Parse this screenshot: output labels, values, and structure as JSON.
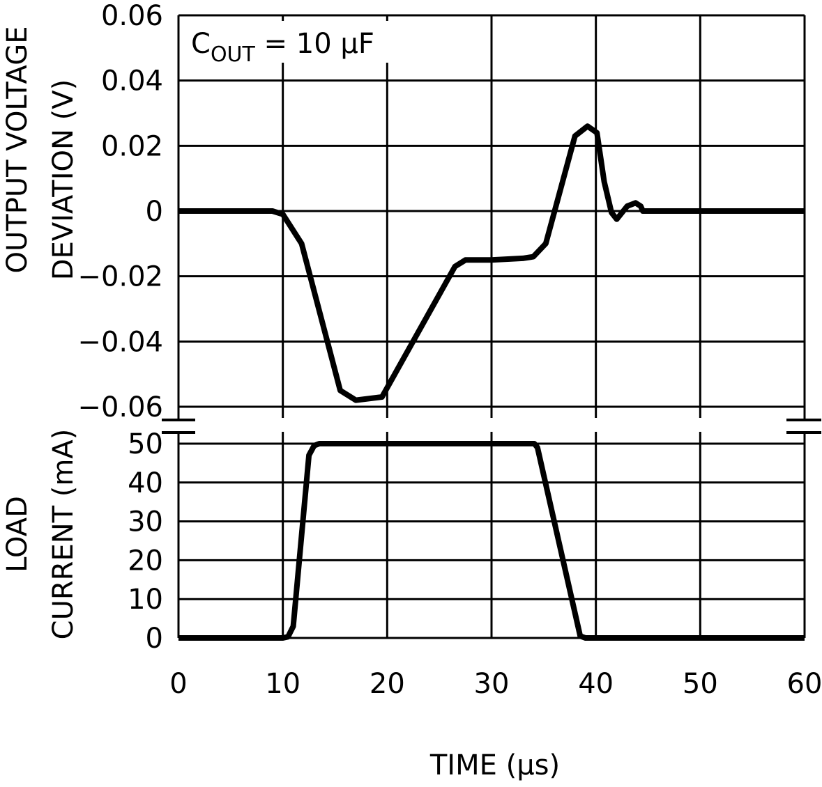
{
  "chart_data": {
    "type": "line",
    "shared_x": {
      "label": "TIME (µs)",
      "range": [
        0,
        60
      ],
      "ticks": [
        0,
        10,
        20,
        30,
        40,
        50,
        60
      ],
      "tick_labels": [
        "0",
        "10",
        "20",
        "30",
        "40",
        "50",
        "60"
      ]
    },
    "panels": [
      {
        "id": "voltage",
        "ylabel_line1": "OUTPUT VOLTAGE",
        "ylabel_line2": "DEVIATION (V)",
        "ylim": [
          -0.06,
          0.06
        ],
        "yticks": [
          0.06,
          0.04,
          0.02,
          0,
          -0.02,
          -0.04,
          -0.06
        ],
        "ytick_labels": [
          "0.06",
          "0.04",
          "0.02",
          "0",
          "−0.02",
          "−0.04",
          "−0.06"
        ],
        "grid": true,
        "annotation": {
          "main": "C",
          "sub": "OUT",
          "rest": " = 10 µF"
        },
        "series": [
          {
            "x": [
              0,
              9,
              10,
              11.8,
              15.5,
              17,
              19.5,
              26.5,
              27.5,
              30,
              33,
              34,
              35.2,
              38,
              39.2,
              40.1,
              40.8,
              41.5,
              42,
              43,
              43.8,
              44.3,
              44.5,
              45,
              60
            ],
            "y": [
              0,
              0,
              -0.001,
              -0.01,
              -0.055,
              -0.058,
              -0.057,
              -0.017,
              -0.015,
              -0.015,
              -0.0145,
              -0.014,
              -0.01,
              0.023,
              0.026,
              0.024,
              0.009,
              -0.0005,
              -0.0025,
              0.0015,
              0.0025,
              0.0015,
              0,
              0,
              0
            ]
          }
        ]
      },
      {
        "id": "current",
        "ylabel_line1": "LOAD",
        "ylabel_line2": "CURRENT (mA)",
        "ylim": [
          0,
          50
        ],
        "yticks": [
          50,
          40,
          30,
          20,
          10,
          0
        ],
        "ytick_labels": [
          "50",
          "40",
          "30",
          "20",
          "10",
          "0"
        ],
        "grid": true,
        "series": [
          {
            "x": [
              0,
              10,
              10.5,
              11,
              12.5,
              13,
              13.5,
              33.5,
              34.1,
              34.4,
              38.5,
              39,
              40,
              60
            ],
            "y": [
              0,
              0,
              0.3,
              3,
              47,
              49.5,
              50,
              50,
              50,
              49,
              0.5,
              0,
              0,
              0
            ]
          }
        ]
      }
    ]
  }
}
